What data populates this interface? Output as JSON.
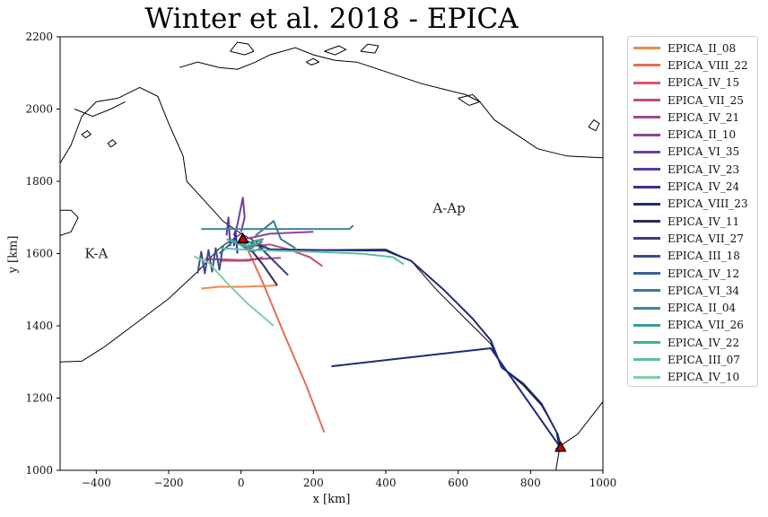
{
  "chart_data": {
    "type": "line",
    "title": "Winter et al. 2018 - EPICA",
    "xlabel": "x [km]",
    "ylabel": "y [km]",
    "xlim": [
      -500,
      1000
    ],
    "ylim": [
      1000,
      2200
    ],
    "xticks": [
      "−400",
      "−200",
      "0",
      "200",
      "400",
      "600",
      "800",
      "1000"
    ],
    "yticks": [
      "1000",
      "1200",
      "1400",
      "1600",
      "1800",
      "2000",
      "2200"
    ],
    "region_labels": [
      {
        "text": "K-A",
        "x": -400,
        "y": 1600
      },
      {
        "text": "A-Ap",
        "x": 575,
        "y": 1725
      }
    ],
    "stations": [
      {
        "x": 5,
        "y": 1640
      },
      {
        "x": 883,
        "y": 1063
      }
    ],
    "legend_position": "outside-right",
    "series": [
      {
        "name": "EPICA_II_08",
        "color": "#f08a4b",
        "points": [
          [
            -110,
            1503
          ],
          [
            -60,
            1508
          ],
          [
            0,
            1508
          ],
          [
            60,
            1510
          ],
          [
            100,
            1512
          ]
        ]
      },
      {
        "name": "EPICA_VIII_22",
        "color": "#e9695a",
        "points": [
          [
            5,
            1640
          ],
          [
            60,
            1520
          ],
          [
            120,
            1375
          ],
          [
            180,
            1235
          ],
          [
            230,
            1105
          ]
        ]
      },
      {
        "name": "EPICA_IV_15",
        "color": "#d9576b",
        "points": [
          [
            -60,
            1580
          ],
          [
            20,
            1580
          ],
          [
            60,
            1590
          ]
        ]
      },
      {
        "name": "EPICA_VII_25",
        "color": "#c24e7a",
        "points": [
          [
            20,
            1620
          ],
          [
            80,
            1625
          ],
          [
            130,
            1612
          ],
          [
            190,
            1590
          ],
          [
            225,
            1565
          ]
        ]
      },
      {
        "name": "EPICA_IV_21",
        "color": "#a4478a",
        "points": [
          [
            -100,
            1585
          ],
          [
            0,
            1582
          ],
          [
            110,
            1588
          ]
        ]
      },
      {
        "name": "EPICA_II_10",
        "color": "#8a4596",
        "points": [
          [
            0,
            1658
          ],
          [
            10,
            1640
          ],
          [
            80,
            1655
          ],
          [
            200,
            1660
          ]
        ]
      },
      {
        "name": "EPICA_VI_35",
        "color": "#72409d",
        "points": [
          [
            -20,
            1650
          ],
          [
            -10,
            1680
          ],
          [
            5,
            1755
          ],
          [
            10,
            1700
          ],
          [
            0,
            1660
          ]
        ]
      },
      {
        "name": "EPICA_IV_23",
        "color": "#5a3a9c",
        "points": [
          [
            -40,
            1650
          ],
          [
            -35,
            1700
          ],
          [
            -30,
            1620
          ]
        ]
      },
      {
        "name": "EPICA_IV_24",
        "color": "#3a2f93",
        "points": [
          [
            -20,
            1620
          ],
          [
            -15,
            1660
          ],
          [
            -10,
            1600
          ]
        ]
      },
      {
        "name": "EPICA_VIII_23",
        "color": "#1d2a7c",
        "points": [
          [
            0,
            1640
          ],
          [
            80,
            1612
          ],
          [
            200,
            1610
          ],
          [
            400,
            1608
          ],
          [
            470,
            1580
          ],
          [
            560,
            1500
          ],
          [
            640,
            1420
          ],
          [
            690,
            1360
          ],
          [
            720,
            1285
          ],
          [
            780,
            1240
          ],
          [
            830,
            1185
          ],
          [
            875,
            1100
          ],
          [
            885,
            1060
          ],
          [
            690,
            1338
          ],
          [
            250,
            1288
          ]
        ]
      },
      {
        "name": "EPICA_IV_11",
        "color": "#2e2c55",
        "points": [
          [
            20,
            1620
          ],
          [
            60,
            1570
          ],
          [
            100,
            1512
          ]
        ]
      },
      {
        "name": "EPICA_VII_27",
        "color": "#3a3f75",
        "points": [
          [
            40,
            1630
          ],
          [
            80,
            1590
          ],
          [
            130,
            1540
          ]
        ]
      },
      {
        "name": "EPICA_III_18",
        "color": "#3b4e8c",
        "points": [
          [
            -120,
            1545
          ],
          [
            -110,
            1605
          ],
          [
            -100,
            1545
          ],
          [
            -90,
            1610
          ],
          [
            -80,
            1550
          ],
          [
            -70,
            1615
          ],
          [
            -60,
            1555
          ],
          [
            -50,
            1620
          ]
        ]
      },
      {
        "name": "EPICA_IV_12",
        "color": "#3a618f",
        "points": [
          [
            -60,
            1600
          ],
          [
            -20,
            1635
          ],
          [
            30,
            1605
          ],
          [
            70,
            1620
          ]
        ]
      },
      {
        "name": "EPICA_VI_34",
        "color": "#3b7896",
        "points": [
          [
            40,
            1650
          ],
          [
            90,
            1690
          ],
          [
            110,
            1640
          ],
          [
            150,
            1615
          ]
        ]
      },
      {
        "name": "EPICA_II_04",
        "color": "#3d8896",
        "points": [
          [
            -110,
            1668
          ],
          [
            120,
            1668
          ],
          [
            300,
            1668
          ],
          [
            310,
            1678
          ]
        ]
      },
      {
        "name": "EPICA_VII_26",
        "color": "#3f999a",
        "points": [
          [
            -30,
            1640
          ],
          [
            30,
            1615
          ],
          [
            60,
            1640
          ],
          [
            0,
            1625
          ]
        ]
      },
      {
        "name": "EPICA_IV_22",
        "color": "#46ad9c",
        "points": [
          [
            -40,
            1640
          ],
          [
            10,
            1620
          ],
          [
            60,
            1632
          ]
        ]
      },
      {
        "name": "EPICA_III_07",
        "color": "#5dbfa2",
        "points": [
          [
            -60,
            1615
          ],
          [
            30,
            1610
          ],
          [
            200,
            1605
          ],
          [
            330,
            1600
          ],
          [
            420,
            1590
          ],
          [
            450,
            1570
          ]
        ]
      },
      {
        "name": "EPICA_IV_10",
        "color": "#7ccfa6",
        "points": [
          [
            -130,
            1592
          ],
          [
            -90,
            1575
          ],
          [
            -40,
            1520
          ],
          [
            20,
            1460
          ],
          [
            90,
            1400
          ]
        ]
      }
    ],
    "coastlines": [
      [
        [
          -500,
          1300
        ],
        [
          -440,
          1302
        ],
        [
          -380,
          1340
        ],
        [
          -300,
          1400
        ],
        [
          -200,
          1475
        ],
        [
          -120,
          1550
        ],
        [
          -60,
          1615
        ],
        [
          0,
          1655
        ],
        [
          -50,
          1690
        ],
        [
          -100,
          1745
        ],
        [
          -150,
          1800
        ],
        [
          -160,
          1870
        ],
        [
          -200,
          1960
        ],
        [
          -230,
          2035
        ],
        [
          -280,
          2060
        ],
        [
          -340,
          2030
        ],
        [
          -400,
          2020
        ],
        [
          -440,
          1980
        ],
        [
          -470,
          1900
        ],
        [
          -500,
          1850
        ]
      ],
      [
        [
          0,
          1655
        ],
        [
          80,
          1612
        ],
        [
          200,
          1610
        ],
        [
          400,
          1612
        ],
        [
          470,
          1580
        ],
        [
          540,
          1500
        ],
        [
          620,
          1420
        ],
        [
          690,
          1350
        ],
        [
          720,
          1285
        ],
        [
          780,
          1235
        ],
        [
          830,
          1180
        ],
        [
          870,
          1110
        ],
        [
          880,
          1060
        ],
        [
          870,
          1000
        ]
      ],
      [
        [
          870,
          1060
        ],
        [
          930,
          1100
        ],
        [
          1000,
          1190
        ]
      ],
      [
        [
          -500,
          1650
        ],
        [
          -470,
          1660
        ],
        [
          -450,
          1700
        ],
        [
          -470,
          1720
        ],
        [
          -500,
          1720
        ]
      ],
      [
        [
          -170,
          2115
        ],
        [
          -120,
          2130
        ],
        [
          -60,
          2115
        ],
        [
          -10,
          2110
        ],
        [
          40,
          2130
        ],
        [
          80,
          2150
        ],
        [
          150,
          2170
        ],
        [
          200,
          2150
        ],
        [
          260,
          2135
        ],
        [
          320,
          2130
        ],
        [
          380,
          2110
        ],
        [
          440,
          2090
        ],
        [
          500,
          2070
        ],
        [
          560,
          2055
        ],
        [
          620,
          2040
        ],
        [
          660,
          2020
        ],
        [
          700,
          1970
        ],
        [
          760,
          1930
        ],
        [
          820,
          1890
        ],
        [
          900,
          1870
        ],
        [
          1000,
          1865
        ]
      ],
      [
        [
          -460,
          2000
        ],
        [
          -410,
          1980
        ],
        [
          -360,
          2000
        ],
        [
          -320,
          2020
        ]
      ],
      [
        [
          -430,
          1920
        ],
        [
          -415,
          1930
        ],
        [
          -425,
          1940
        ],
        [
          -440,
          1930
        ],
        [
          -430,
          1920
        ]
      ],
      [
        [
          -360,
          1895
        ],
        [
          -345,
          1905
        ],
        [
          -355,
          1915
        ],
        [
          -368,
          1905
        ],
        [
          -360,
          1895
        ]
      ],
      [
        [
          -30,
          2160
        ],
        [
          -10,
          2185
        ],
        [
          20,
          2180
        ],
        [
          35,
          2160
        ],
        [
          10,
          2150
        ],
        [
          -30,
          2160
        ]
      ],
      [
        [
          230,
          2160
        ],
        [
          270,
          2175
        ],
        [
          290,
          2165
        ],
        [
          260,
          2150
        ],
        [
          230,
          2160
        ]
      ],
      [
        [
          330,
          2160
        ],
        [
          350,
          2180
        ],
        [
          380,
          2175
        ],
        [
          370,
          2155
        ],
        [
          330,
          2160
        ]
      ],
      [
        [
          600,
          2030
        ],
        [
          640,
          2040
        ],
        [
          660,
          2020
        ],
        [
          630,
          2010
        ],
        [
          600,
          2030
        ]
      ],
      [
        [
          960,
          1950
        ],
        [
          975,
          1970
        ],
        [
          990,
          1960
        ],
        [
          980,
          1940
        ],
        [
          960,
          1950
        ]
      ],
      [
        [
          180,
          2130
        ],
        [
          200,
          2140
        ],
        [
          215,
          2130
        ],
        [
          195,
          2122
        ],
        [
          180,
          2130
        ]
      ]
    ]
  }
}
